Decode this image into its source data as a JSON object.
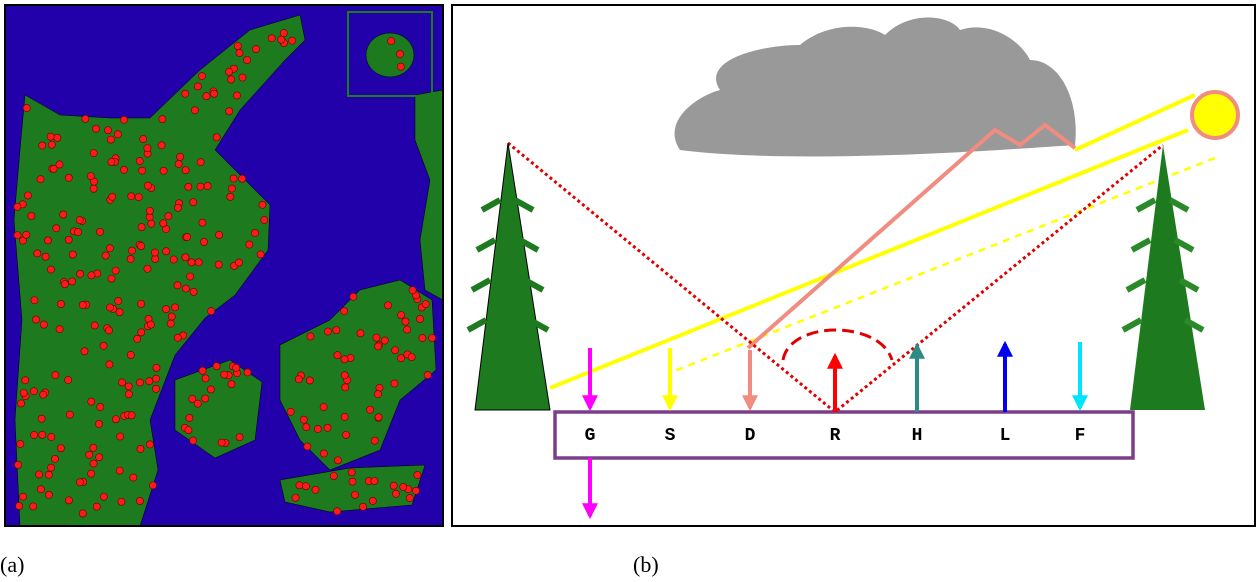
{
  "captions": {
    "a": "(a)",
    "b": "(b)"
  },
  "fluxes": [
    {
      "label": "G"
    },
    {
      "label": "S"
    },
    {
      "label": "D"
    },
    {
      "label": "R"
    },
    {
      "label": "H"
    },
    {
      "label": "L"
    },
    {
      "label": "F"
    }
  ]
}
